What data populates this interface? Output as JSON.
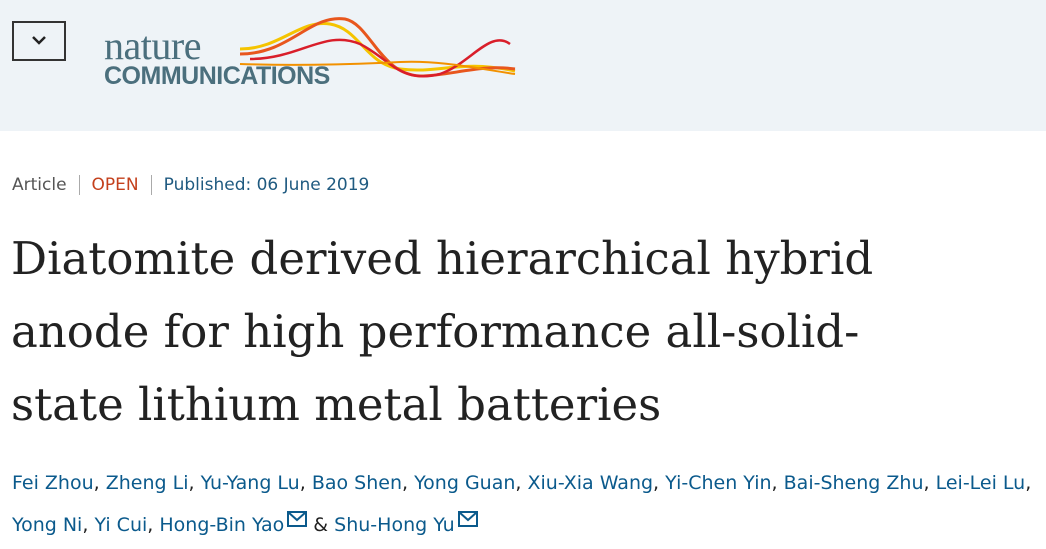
{
  "header": {
    "logo_word": "nature",
    "logo_subword": "COMMUNICATIONS"
  },
  "article": {
    "type": "Article",
    "access": "OPEN",
    "published": "Published: 06 June 2019",
    "title": "Diatomite derived hierarchical hybrid anode for high performance all-solid-state lithium metal batteries",
    "authors": [
      "Fei Zhou",
      "Zheng Li",
      "Yu-Yang Lu",
      "Bao Shen",
      "Yong Guan",
      "Xiu-Xia Wang",
      "Yi-Chen Yin",
      "Bai-Sheng Zhu",
      "Lei-Lei Lu",
      "Yong Ni",
      "Yi Cui",
      "Hong-Bin Yao",
      "Shu-Hong Yu"
    ],
    "author_separator": ",",
    "last_separator": "&"
  }
}
